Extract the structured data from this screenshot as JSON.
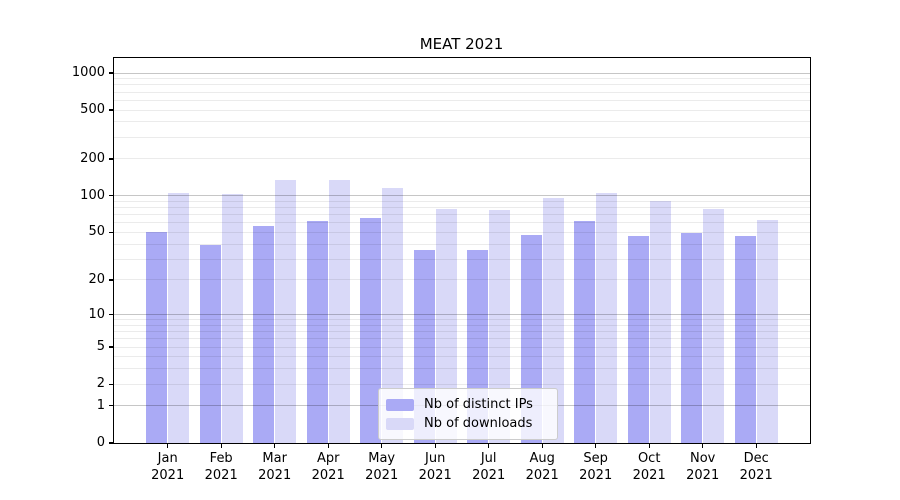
{
  "title": "MEAT 2021",
  "background_color": "#ffffff",
  "x_axis": {
    "months": [
      "Jan",
      "Feb",
      "Mar",
      "Apr",
      "May",
      "Jun",
      "Jul",
      "Aug",
      "Sep",
      "Oct",
      "Nov",
      "Dec"
    ],
    "year": "2021"
  },
  "legend": {
    "items": [
      {
        "label": "Nb of distinct IPs",
        "color": "#aaaaf5"
      },
      {
        "label": "Nb of downloads",
        "color": "#d9d9f8"
      }
    ]
  },
  "chart_data": {
    "type": "bar",
    "title": "MEAT 2021",
    "categories": [
      "Jan 2021",
      "Feb 2021",
      "Mar 2021",
      "Apr 2021",
      "May 2021",
      "Jun 2021",
      "Jul 2021",
      "Aug 2021",
      "Sep 2021",
      "Oct 2021",
      "Nov 2021",
      "Dec 2021"
    ],
    "series": [
      {
        "name": "Nb of distinct IPs",
        "color": "#aaaaf5",
        "values": [
          50,
          39,
          57,
          62,
          66,
          36,
          36,
          48,
          62,
          47,
          49,
          47
        ]
      },
      {
        "name": "Nb of downloads",
        "color": "#d9d9f8",
        "values": [
          106,
          104,
          134,
          135,
          115,
          78,
          76,
          96,
          106,
          90,
          78,
          63
        ]
      }
    ],
    "xlabel": "",
    "ylabel": "",
    "y_scale": "log10(1+y)",
    "y_ticks": [
      1000,
      500,
      200,
      100,
      50,
      20,
      10,
      5,
      2,
      1,
      0
    ],
    "ylim": [
      0,
      1325
    ],
    "grid": "horizontal major (1,10,100,1000) dark + minor light, drawn over bars",
    "legend_position": "lower center"
  }
}
